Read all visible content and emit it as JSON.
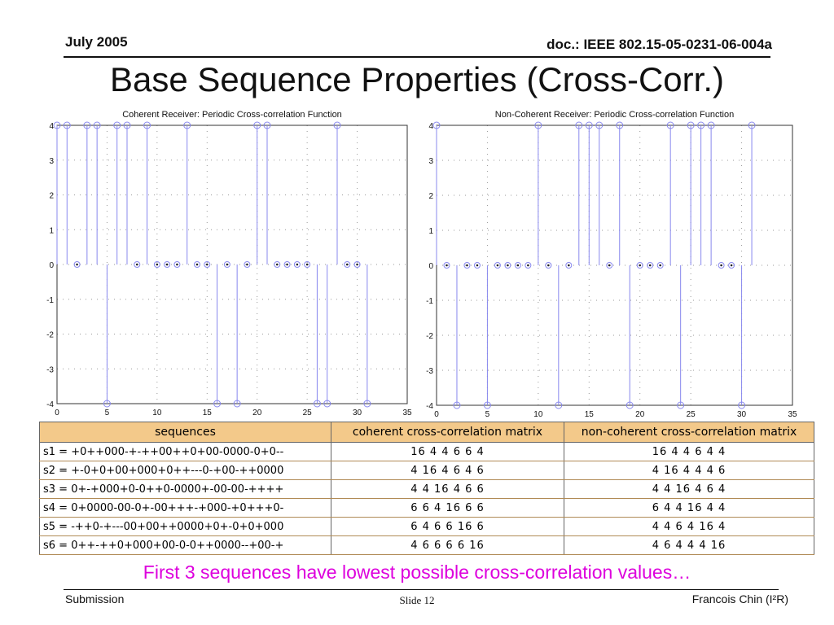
{
  "header": {
    "date": "July 2005",
    "doc": "doc.: IEEE 802.15-05-0231-06-004a"
  },
  "title": "Base Sequence Properties (Cross-Corr.)",
  "chart_data": [
    {
      "type": "stem",
      "title": "Coherent Receiver: Periodic Cross-correlation Function",
      "xlim": [
        0,
        35
      ],
      "ylim": [
        -4,
        4
      ],
      "xticks": [
        0,
        5,
        10,
        15,
        20,
        25,
        30,
        35
      ],
      "yticks": [
        4,
        3,
        2,
        1,
        0,
        -1,
        -2,
        -3,
        -4
      ],
      "points": [
        [
          0,
          4
        ],
        [
          1,
          4
        ],
        [
          2,
          0
        ],
        [
          3,
          4
        ],
        [
          4,
          4
        ],
        [
          5,
          -4
        ],
        [
          6,
          4
        ],
        [
          7,
          4
        ],
        [
          8,
          0
        ],
        [
          9,
          4
        ],
        [
          10,
          0
        ],
        [
          11,
          0
        ],
        [
          12,
          0
        ],
        [
          13,
          4
        ],
        [
          14,
          0
        ],
        [
          15,
          0
        ],
        [
          16,
          -4
        ],
        [
          17,
          0
        ],
        [
          18,
          -4
        ],
        [
          19,
          0
        ],
        [
          20,
          4
        ],
        [
          21,
          4
        ],
        [
          22,
          0
        ],
        [
          23,
          0
        ],
        [
          24,
          0
        ],
        [
          25,
          0
        ],
        [
          26,
          -4
        ],
        [
          27,
          -4
        ],
        [
          28,
          4
        ],
        [
          29,
          0
        ],
        [
          30,
          0
        ],
        [
          31,
          -4
        ]
      ]
    },
    {
      "type": "stem",
      "title": "Non-Coherent Receiver: Periodic Cross-correlation Function",
      "xlim": [
        0,
        35
      ],
      "ylim": [
        -4,
        4
      ],
      "xticks": [
        0,
        5,
        10,
        15,
        20,
        25,
        30,
        35
      ],
      "yticks": [
        4,
        3,
        2,
        1,
        0,
        -1,
        -2,
        -3,
        -4
      ],
      "points": [
        [
          0,
          4
        ],
        [
          1,
          0
        ],
        [
          2,
          -4
        ],
        [
          3,
          0
        ],
        [
          4,
          0
        ],
        [
          5,
          -4
        ],
        [
          6,
          0
        ],
        [
          7,
          0
        ],
        [
          8,
          0
        ],
        [
          9,
          0
        ],
        [
          10,
          4
        ],
        [
          11,
          0
        ],
        [
          12,
          -4
        ],
        [
          13,
          0
        ],
        [
          14,
          4
        ],
        [
          15,
          4
        ],
        [
          16,
          4
        ],
        [
          17,
          0
        ],
        [
          18,
          4
        ],
        [
          19,
          -4
        ],
        [
          20,
          0
        ],
        [
          21,
          0
        ],
        [
          22,
          0
        ],
        [
          23,
          4
        ],
        [
          24,
          -4
        ],
        [
          25,
          4
        ],
        [
          26,
          4
        ],
        [
          27,
          4
        ],
        [
          28,
          0
        ],
        [
          29,
          0
        ],
        [
          30,
          -4
        ],
        [
          31,
          4
        ]
      ]
    }
  ],
  "table": {
    "headers": [
      "sequences",
      "coherent cross-correlation matrix",
      "non-coherent cross-correlation matrix"
    ],
    "rows": [
      [
        "s1 = +0++000-+-++00++0+00-0000-0+0--",
        "16 4 4 6 6 4",
        "16 4 4 6 4 4"
      ],
      [
        "s2 = +-0+0+00+000+0++---0-+00-++0000",
        "4 16 4 6 4 6",
        "4 16 4 4 4 6"
      ],
      [
        "s3 = 0+-+000+0-0++0-0000+-00-00-++++",
        "4 4 16 4 6 6",
        "4 4 16 4 6 4"
      ],
      [
        "s4 = 0+0000-00-0+-00+++-+000-+0+++0-",
        "6 6 4 16 6 6",
        "6 4 4 16 4 4"
      ],
      [
        "s5 = -++0-+---00+00++0000+0+-0+0+000",
        "6 4 6 6 16 6",
        "4 4 6 4 16 4"
      ],
      [
        "s6 = 0++-++0+000+00-0-0++0000--+00-+",
        "4 6 6 6 6 16",
        "4 6 4 4 4 16"
      ]
    ]
  },
  "note": "First 3 sequences have lowest possible cross-correlation values…",
  "footer": {
    "left": "Submission",
    "center": "Slide 12",
    "right": "Francois Chin (I²R)"
  },
  "colors": {
    "stem": "#8888ee",
    "note": "#dd00dd",
    "table_header": "#f3c98a"
  }
}
